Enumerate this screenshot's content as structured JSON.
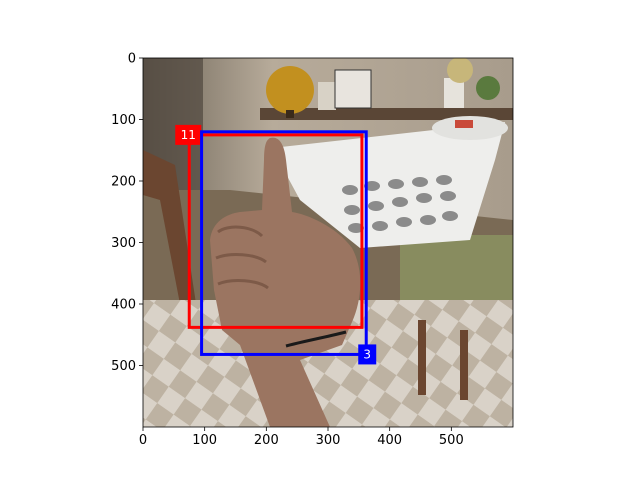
{
  "figure": {
    "xlim": [
      0,
      600
    ],
    "ylim": [
      600,
      0
    ],
    "x_ticks": [
      0,
      100,
      200,
      300,
      400,
      500
    ],
    "y_ticks": [
      0,
      100,
      200,
      300,
      400,
      500
    ]
  },
  "boxes": [
    {
      "label": "11",
      "color": "#ff0000",
      "x1": 75,
      "y1": 125,
      "x2": 355,
      "y2": 438,
      "label_corner": "top-left"
    },
    {
      "label": "3",
      "color": "#0000ff",
      "x1": 95,
      "y1": 120,
      "x2": 362,
      "y2": 482,
      "label_corner": "bottom-right"
    }
  ],
  "photo": {
    "subject": "hand making a thumbs-up gesture in front of a white laundry basket, kitchen interior"
  }
}
